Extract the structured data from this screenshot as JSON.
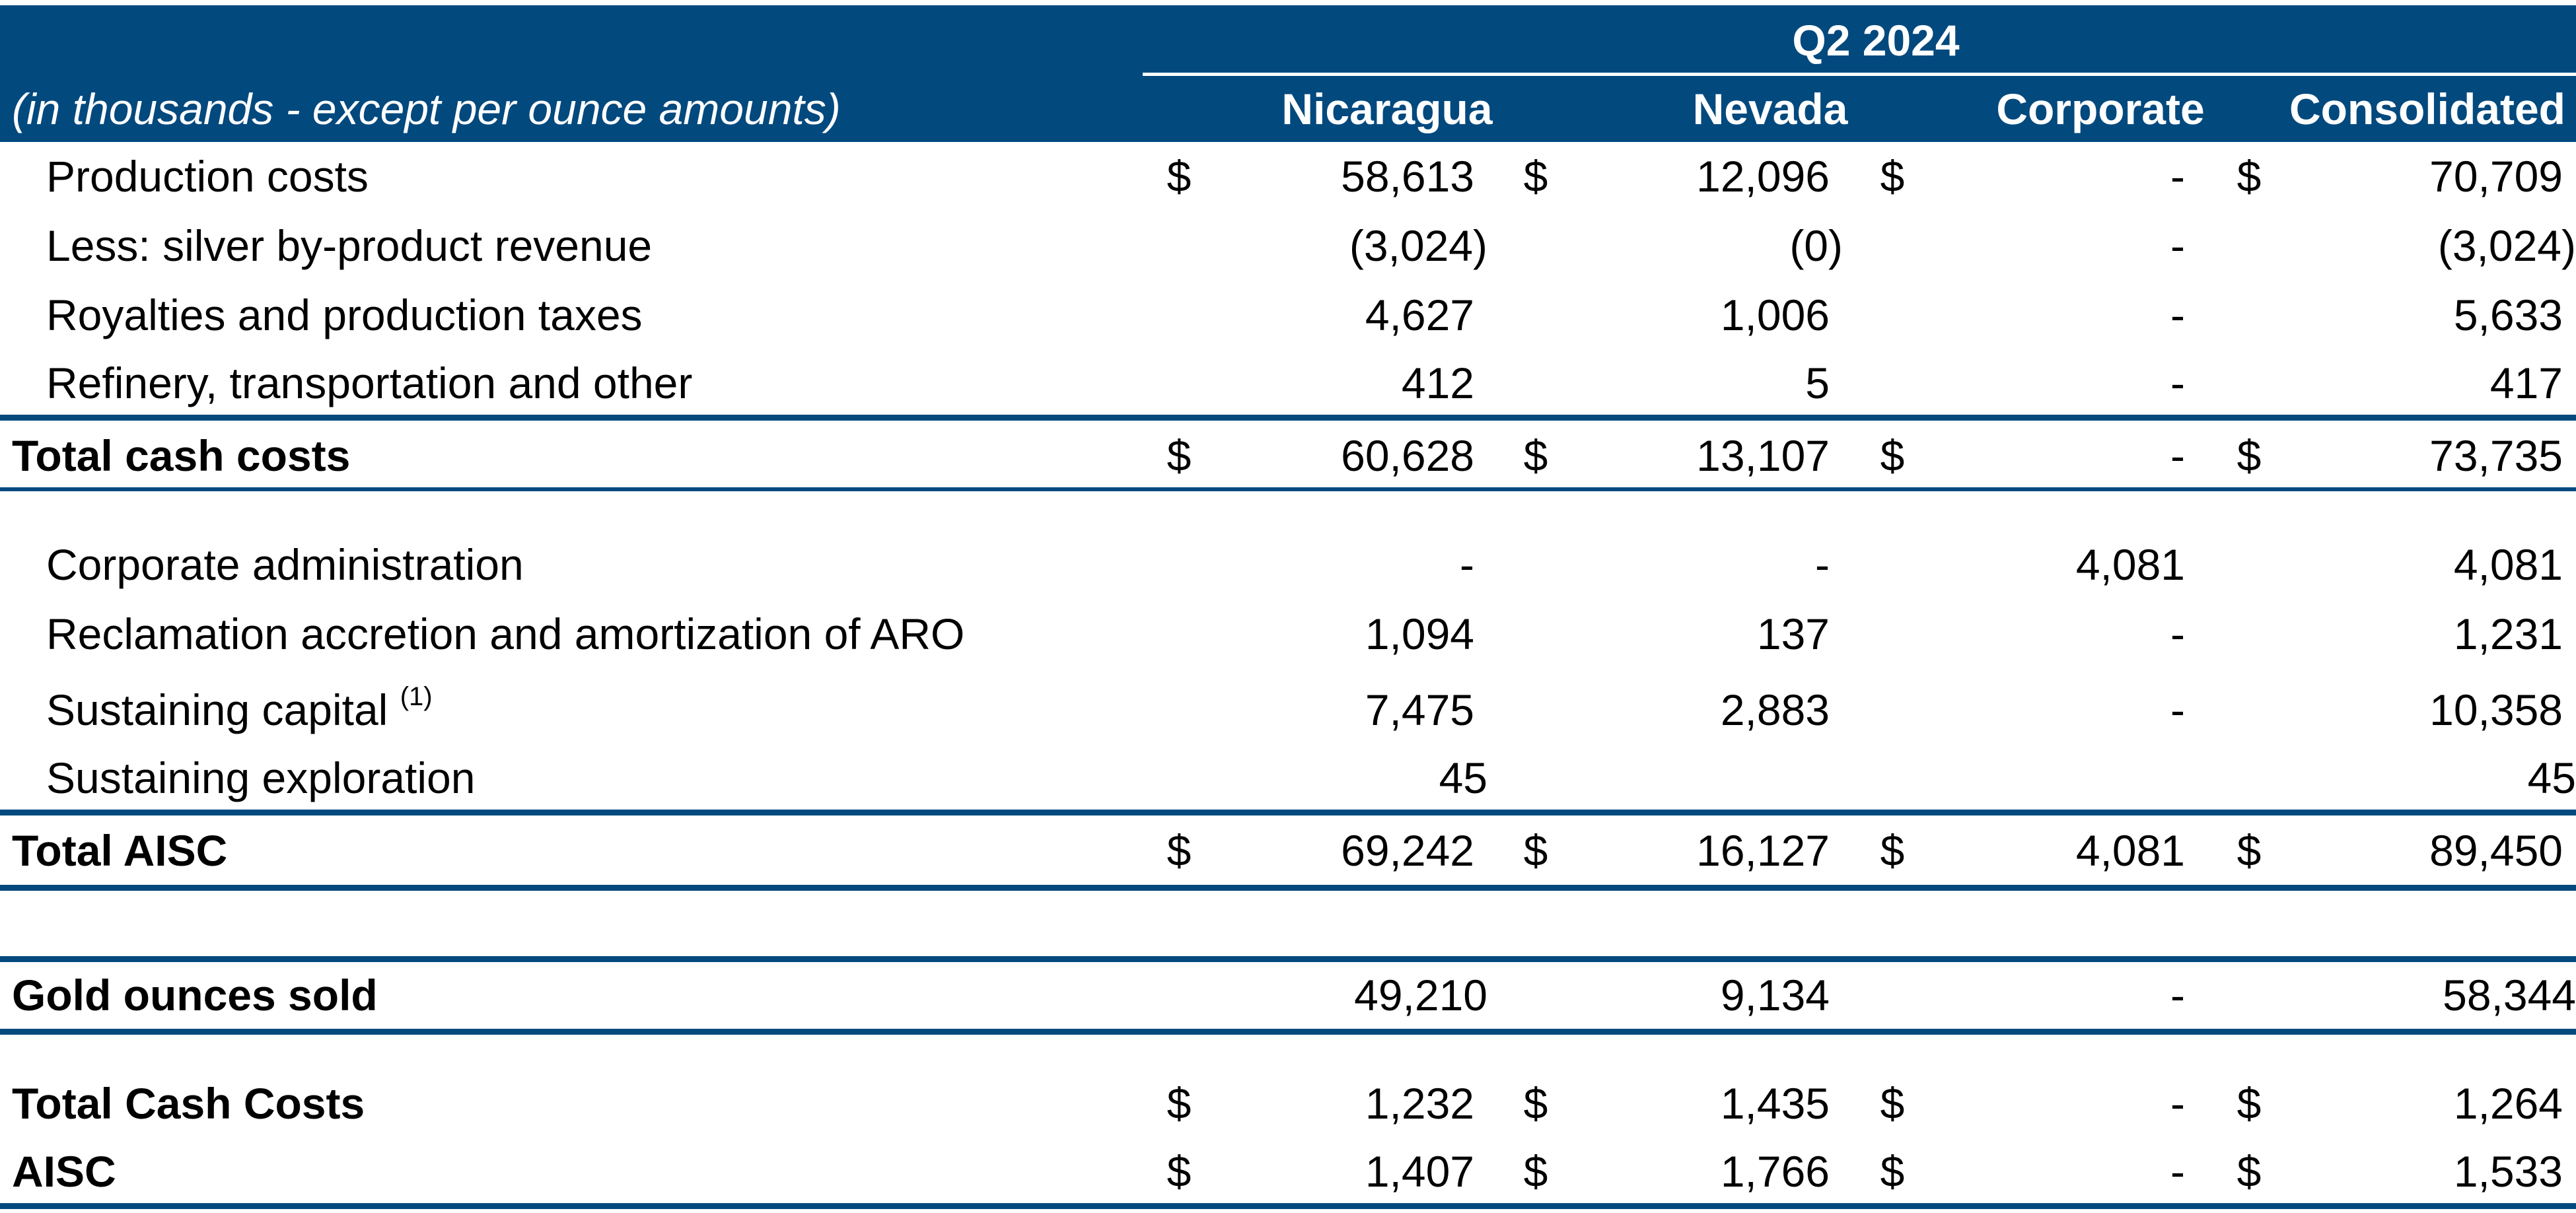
{
  "header": {
    "period": "Q2 2024",
    "units_note": "(in thousands - except per ounce amounts)",
    "columns": [
      "Nicaragua",
      "Nevada",
      "Corporate",
      "Consolidated"
    ]
  },
  "currency_symbol": "$",
  "rows": [
    {
      "label": "Production costs",
      "values": [
        "58,613",
        "12,096",
        "-",
        "70,709"
      ]
    },
    {
      "label": "Less: silver by-product revenue",
      "values": [
        "(3,024)",
        "(0)",
        "-",
        "(3,024)"
      ]
    },
    {
      "label": "Royalties and production taxes",
      "values": [
        "4,627",
        "1,006",
        "-",
        "5,633"
      ]
    },
    {
      "label": "Refinery, transportation and other",
      "values": [
        "412",
        "5",
        "-",
        "417"
      ]
    },
    {
      "label": "Total cash costs",
      "values": [
        "60,628",
        "13,107",
        "-",
        "73,735"
      ]
    },
    {
      "label": "Corporate administration",
      "values": [
        "-",
        "-",
        "4,081",
        "4,081"
      ]
    },
    {
      "label": "Reclamation accretion and amortization of ARO",
      "values": [
        "1,094",
        "137",
        "-",
        "1,231"
      ]
    },
    {
      "label": "Sustaining capital",
      "footnote": "(1)",
      "values": [
        "7,475",
        "2,883",
        "-",
        "10,358"
      ]
    },
    {
      "label": "Sustaining exploration",
      "values": [
        "45",
        "",
        "",
        "45"
      ]
    },
    {
      "label": "Total AISC",
      "values": [
        "69,242",
        "16,127",
        "4,081",
        "89,450"
      ]
    },
    {
      "label": "Gold ounces sold",
      "values": [
        "49,210",
        "9,134",
        "-",
        "58,344"
      ]
    },
    {
      "label": "Total Cash Costs",
      "values": [
        "1,232",
        "1,435",
        "-",
        "1,264"
      ]
    },
    {
      "label": "AISC",
      "values": [
        "1,407",
        "1,766",
        "-",
        "1,533"
      ]
    }
  ],
  "colors": {
    "header_background": "#02497e",
    "rule": "#02497e"
  }
}
